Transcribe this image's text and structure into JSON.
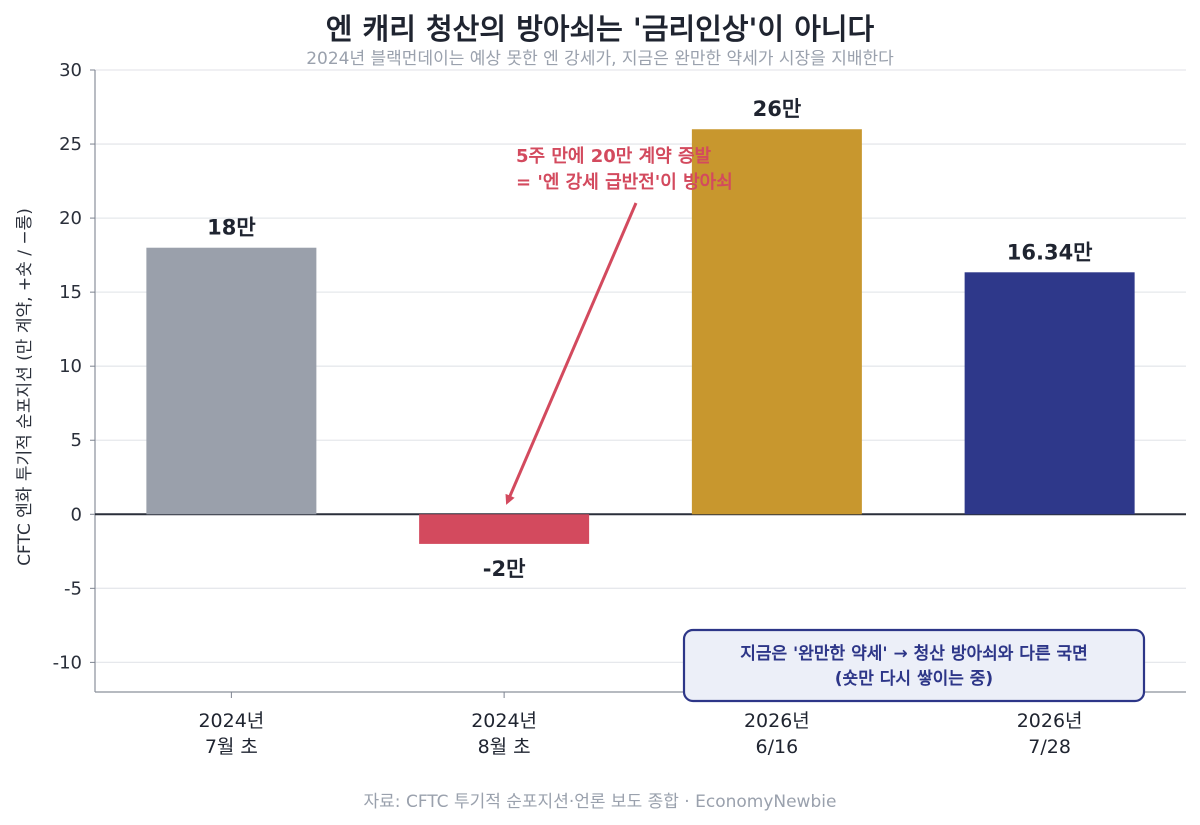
{
  "title": "엔 캐리 청산의 방아쇠는 '금리인상'이 아니다",
  "subtitle": "2024년 블랙먼데이는 예상 못한 엔 강세가, 지금은 완만한 약세가 시장을 지배한다",
  "source": "자료: CFTC 투기적 순포지션·언론 보도 종합 · EconomyNewbie",
  "chart_data": {
    "type": "bar",
    "ylabel": "CFTC 엔화 투기적 순포지션 (만 계약, +숏 / −롱)",
    "ylim": [
      -12,
      30
    ],
    "yticks": [
      30,
      25,
      20,
      15,
      10,
      5,
      0,
      -5,
      -10
    ],
    "grid": true,
    "categories": [
      [
        "2024년",
        "7월 초"
      ],
      [
        "2024년",
        "8월 초"
      ],
      [
        "2026년",
        "6/16"
      ],
      [
        "2026년",
        "7/28"
      ]
    ],
    "values": [
      18,
      -2,
      26,
      16.34
    ],
    "data_labels": [
      "18만",
      "-2만",
      "26만",
      "16.34만"
    ],
    "colors": [
      "#9aa0ab",
      "#d34a5e",
      "#c8972e",
      "#2e388a"
    ],
    "annotations": [
      {
        "lines": [
          "5주 만에 20만 계약 증발",
          "= '엔 강세 급반전'이 방아쇠"
        ],
        "color": "#d34a5e",
        "arrow_to_category": 1
      },
      {
        "lines": [
          "지금은 '완만한 약세' → 청산 방아쇠와 다른 국면",
          "(숏만 다시 쌓이는 중)"
        ],
        "color": "#2d3688",
        "box_fill": "#eceff8"
      }
    ]
  }
}
